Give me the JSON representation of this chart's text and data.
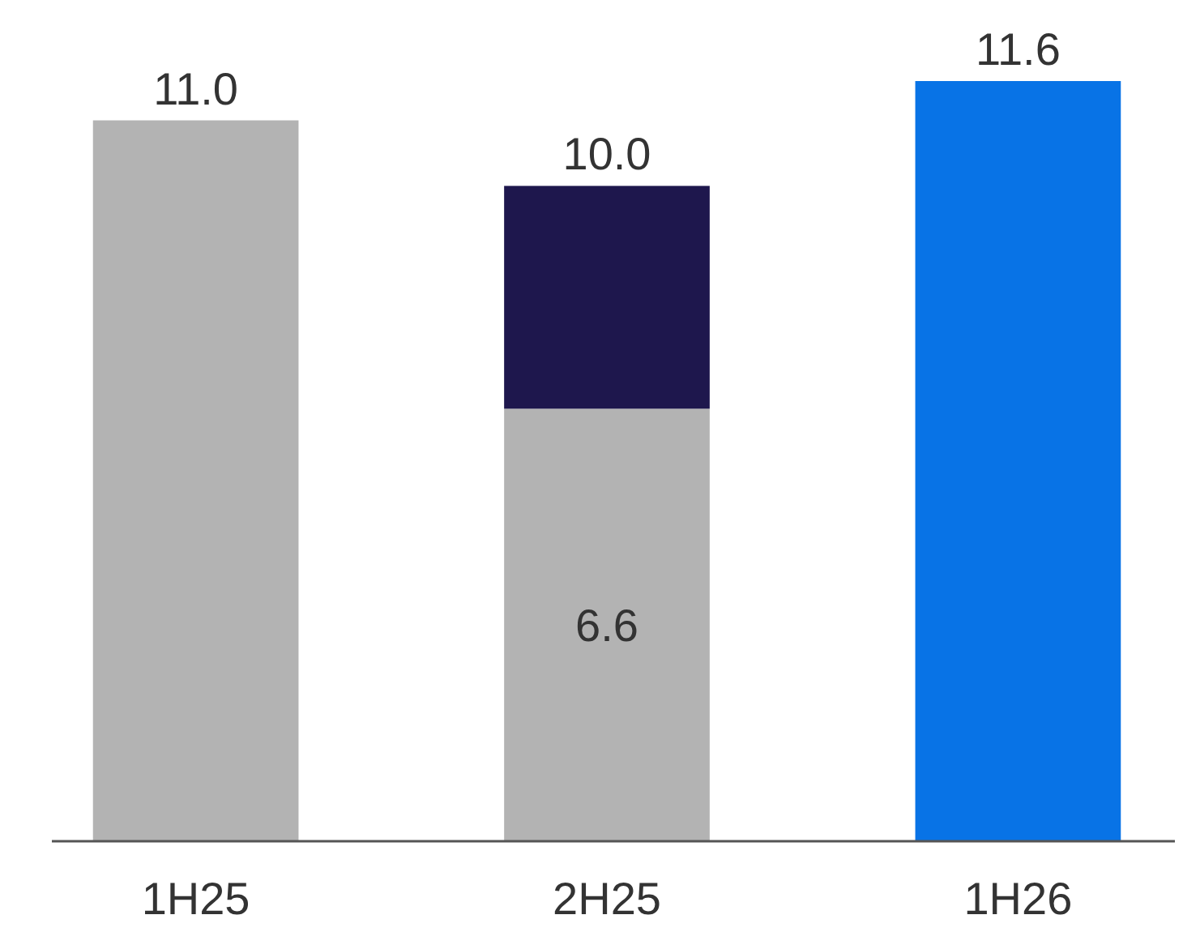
{
  "chart_data": {
    "type": "bar",
    "stacked": true,
    "categories": [
      "1H25",
      "2H25",
      "1H26"
    ],
    "series": [
      {
        "color": "#b3b3b3",
        "values": [
          11.0,
          6.6,
          null
        ],
        "value_labels": [
          "11.0",
          "6.6",
          null
        ]
      },
      {
        "color": "#1e174d",
        "values": [
          null,
          3.4,
          null
        ]
      },
      {
        "color": "#0873e6",
        "values": [
          null,
          null,
          11.6
        ],
        "value_labels": [
          null,
          null,
          "11.6"
        ]
      }
    ],
    "totals": [
      null,
      "10.0",
      null
    ]
  }
}
